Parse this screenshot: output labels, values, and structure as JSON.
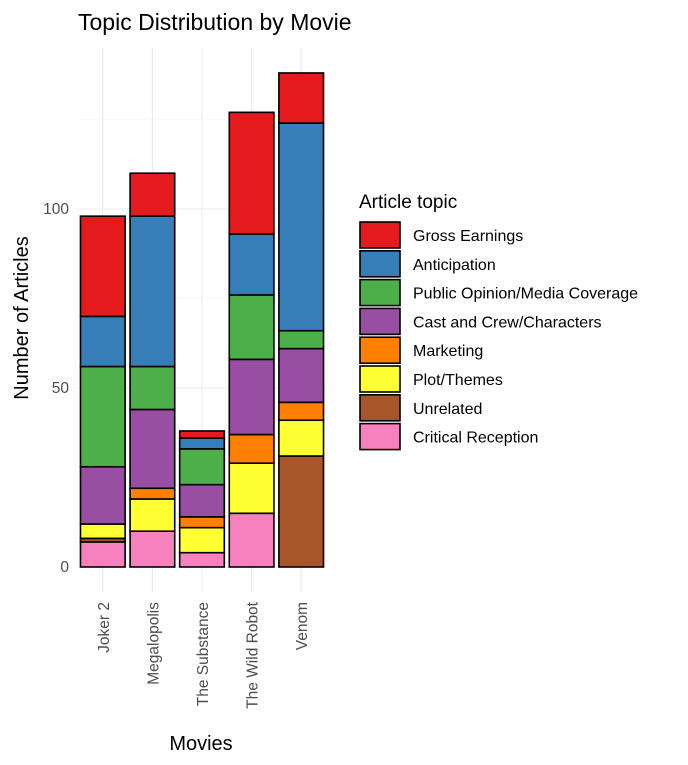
{
  "chart_data": {
    "type": "bar",
    "stacked": true,
    "title": "Topic Distribution by Movie",
    "xlabel": "Movies",
    "ylabel": "Number of Articles",
    "categories": [
      "Joker 2",
      "Megalopolis",
      "The Substance",
      "The Wild Robot",
      "Venom"
    ],
    "yticks": [
      0,
      50,
      100
    ],
    "ylim": [
      -7,
      140
    ],
    "grid": true,
    "legend": {
      "title": "Article topic",
      "position": "right"
    },
    "series": [
      {
        "name": "Critical Reception",
        "color": "#f781bf",
        "values": [
          7,
          10,
          4,
          15,
          0
        ]
      },
      {
        "name": "Unrelated",
        "color": "#a65628",
        "values": [
          1,
          0,
          0,
          0,
          31
        ]
      },
      {
        "name": "Plot/Themes",
        "color": "#ffff33",
        "values": [
          4,
          9,
          7,
          14,
          10
        ]
      },
      {
        "name": "Marketing",
        "color": "#ff7f00",
        "values": [
          0,
          3,
          3,
          8,
          5
        ]
      },
      {
        "name": "Cast and Crew/Characters",
        "color": "#984ea3",
        "values": [
          16,
          22,
          9,
          21,
          15
        ]
      },
      {
        "name": "Public Opinion/Media Coverage",
        "color": "#4daf4a",
        "values": [
          28,
          12,
          10,
          18,
          5
        ]
      },
      {
        "name": "Anticipation",
        "color": "#377eb8",
        "values": [
          14,
          42,
          3,
          17,
          58
        ]
      },
      {
        "name": "Gross Earnings",
        "color": "#e41a1c",
        "values": [
          28,
          12,
          2,
          34,
          14
        ]
      }
    ],
    "legend_order": [
      "Gross Earnings",
      "Anticipation",
      "Public Opinion/Media Coverage",
      "Cast and Crew/Characters",
      "Marketing",
      "Plot/Themes",
      "Unrelated",
      "Critical Reception"
    ]
  }
}
